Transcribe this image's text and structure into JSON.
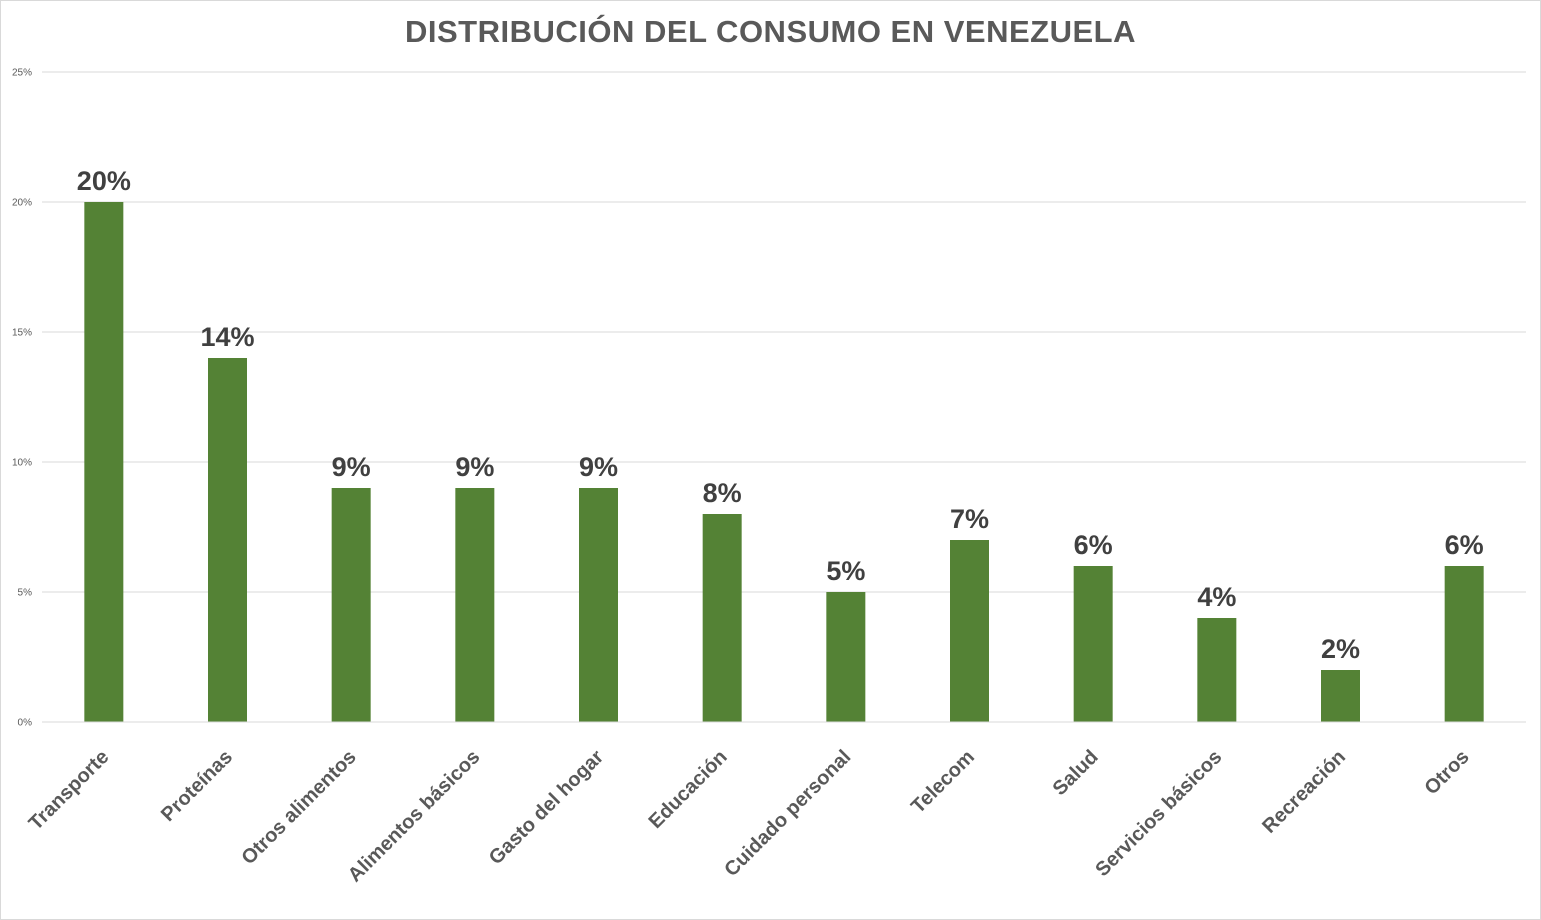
{
  "chart_data": {
    "type": "bar",
    "title": "DISTRIBUCIÓN DEL CONSUMO EN VENEZUELA",
    "categories": [
      "Transporte",
      "Proteínas",
      "Otros alimentos",
      "Alimentos básicos",
      "Gasto del hogar",
      "Educación",
      "Cuidado personal",
      "Telecom",
      "Salud",
      "Servicios básicos",
      "Recreación",
      "Otros"
    ],
    "values": [
      20,
      14,
      9,
      9,
      9,
      8,
      5,
      7,
      6,
      4,
      2,
      6
    ],
    "data_labels": [
      "20%",
      "14%",
      "9%",
      "9%",
      "9%",
      "8%",
      "5%",
      "7%",
      "6%",
      "4%",
      "2%",
      "6%"
    ],
    "yticks": [
      "0%",
      "5%",
      "10%",
      "15%",
      "20%",
      "25%"
    ],
    "ylim": [
      0,
      25
    ],
    "grid": true,
    "legend": "none",
    "bar_color": "#548235"
  }
}
